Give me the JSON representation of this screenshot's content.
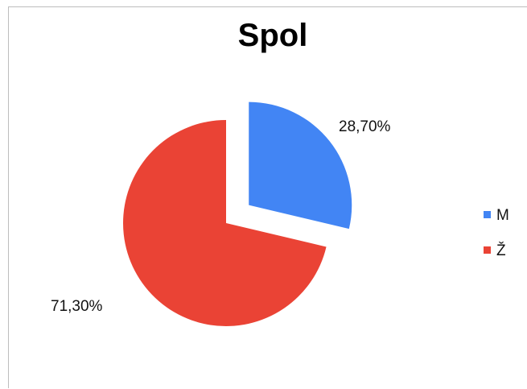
{
  "chart_data": {
    "type": "pie",
    "title": "Spol",
    "categories": [
      "M",
      "Ž"
    ],
    "values": [
      28.7,
      71.3
    ],
    "labels": [
      "28,70%",
      "71,30%"
    ],
    "colors": [
      "#4285f4",
      "#ea4335"
    ],
    "legend_position": "right",
    "exploded": true,
    "start_angle": "12 o'clock, clockwise"
  }
}
